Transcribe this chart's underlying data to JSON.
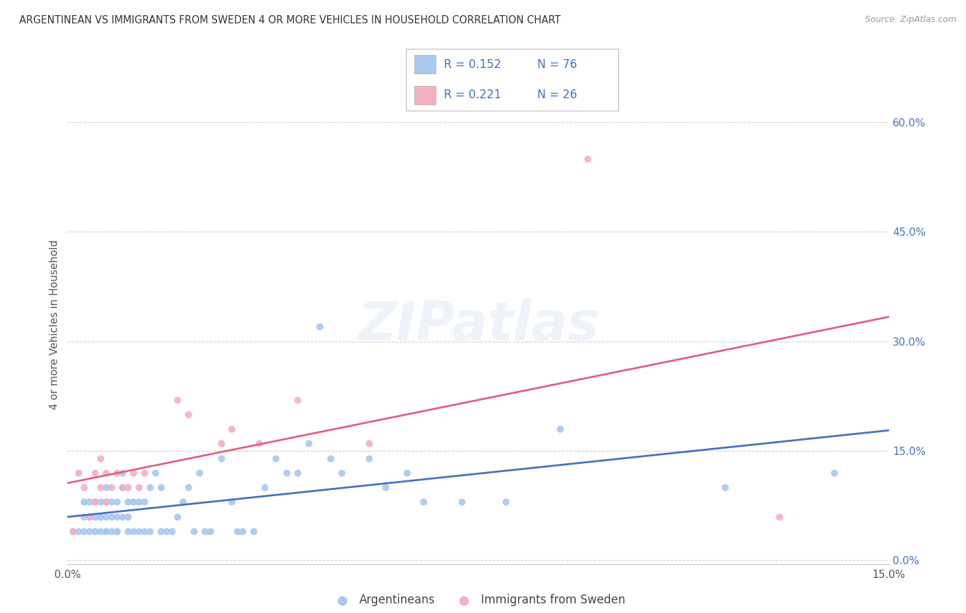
{
  "title": "ARGENTINEAN VS IMMIGRANTS FROM SWEDEN 4 OR MORE VEHICLES IN HOUSEHOLD CORRELATION CHART",
  "source": "Source: ZipAtlas.com",
  "ylabel": "4 or more Vehicles in Household",
  "xlim": [
    0.0,
    0.15
  ],
  "ylim": [
    -0.005,
    0.65
  ],
  "xticks": [
    0.0,
    0.05,
    0.1,
    0.15
  ],
  "xtick_labels": [
    "0.0%",
    "",
    "",
    "15.0%"
  ],
  "yticks_right": [
    0.0,
    0.15,
    0.3,
    0.45,
    0.6
  ],
  "ytick_labels_right": [
    "0.0%",
    "15.0%",
    "30.0%",
    "45.0%",
    "60.0%"
  ],
  "legend_R1": "R = 0.152",
  "legend_N1": "N = 76",
  "legend_R2": "R = 0.221",
  "legend_N2": "N = 26",
  "color_blue": "#a8c8f0",
  "color_pink": "#f4b0c0",
  "color_blue_text": "#4472c4",
  "color_line_blue": "#4472c4",
  "color_line_pink": "#e06080",
  "blue_x": [
    0.001,
    0.002,
    0.003,
    0.003,
    0.003,
    0.004,
    0.004,
    0.004,
    0.005,
    0.005,
    0.005,
    0.005,
    0.006,
    0.006,
    0.006,
    0.006,
    0.007,
    0.007,
    0.007,
    0.007,
    0.007,
    0.008,
    0.008,
    0.008,
    0.009,
    0.009,
    0.009,
    0.009,
    0.01,
    0.01,
    0.01,
    0.011,
    0.011,
    0.011,
    0.012,
    0.012,
    0.013,
    0.013,
    0.014,
    0.014,
    0.015,
    0.015,
    0.016,
    0.017,
    0.017,
    0.018,
    0.019,
    0.02,
    0.021,
    0.022,
    0.023,
    0.024,
    0.025,
    0.026,
    0.028,
    0.03,
    0.031,
    0.032,
    0.034,
    0.036,
    0.038,
    0.04,
    0.042,
    0.044,
    0.046,
    0.048,
    0.05,
    0.055,
    0.058,
    0.062,
    0.065,
    0.072,
    0.08,
    0.09,
    0.12,
    0.14
  ],
  "blue_y": [
    0.04,
    0.04,
    0.06,
    0.04,
    0.08,
    0.06,
    0.04,
    0.08,
    0.04,
    0.06,
    0.08,
    0.04,
    0.06,
    0.06,
    0.04,
    0.08,
    0.04,
    0.06,
    0.08,
    0.1,
    0.04,
    0.06,
    0.04,
    0.08,
    0.06,
    0.04,
    0.08,
    0.04,
    0.1,
    0.06,
    0.12,
    0.08,
    0.04,
    0.06,
    0.08,
    0.04,
    0.08,
    0.04,
    0.08,
    0.04,
    0.1,
    0.04,
    0.12,
    0.1,
    0.04,
    0.04,
    0.04,
    0.06,
    0.08,
    0.1,
    0.04,
    0.12,
    0.04,
    0.04,
    0.14,
    0.08,
    0.04,
    0.04,
    0.04,
    0.1,
    0.14,
    0.12,
    0.12,
    0.16,
    0.32,
    0.14,
    0.12,
    0.14,
    0.1,
    0.12,
    0.08,
    0.08,
    0.08,
    0.18,
    0.1,
    0.12
  ],
  "pink_x": [
    0.001,
    0.002,
    0.003,
    0.004,
    0.005,
    0.005,
    0.006,
    0.006,
    0.007,
    0.007,
    0.008,
    0.009,
    0.01,
    0.011,
    0.012,
    0.013,
    0.014,
    0.02,
    0.022,
    0.028,
    0.03,
    0.035,
    0.042,
    0.055,
    0.095,
    0.13
  ],
  "pink_y": [
    0.04,
    0.12,
    0.1,
    0.06,
    0.08,
    0.12,
    0.14,
    0.1,
    0.08,
    0.12,
    0.1,
    0.12,
    0.1,
    0.1,
    0.12,
    0.1,
    0.12,
    0.22,
    0.2,
    0.16,
    0.18,
    0.16,
    0.22,
    0.16,
    0.55,
    0.06
  ],
  "watermark": "ZIPatlas",
  "background_color": "#ffffff",
  "grid_color": "#cccccc"
}
